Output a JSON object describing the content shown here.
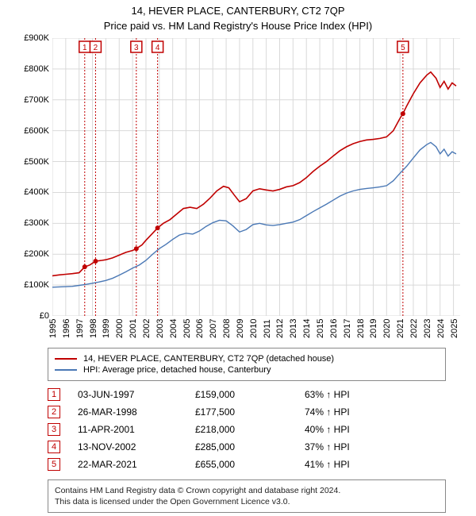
{
  "title1": "14, HEVER PLACE, CANTERBURY, CT2 7QP",
  "title2": "Price paid vs. HM Land Registry's House Price Index (HPI)",
  "chart": {
    "type": "line",
    "x_domain": [
      1995,
      2025.5
    ],
    "y_domain": [
      0,
      900000
    ],
    "y_ticks": [
      0,
      100000,
      200000,
      300000,
      400000,
      500000,
      600000,
      700000,
      800000,
      900000
    ],
    "y_tick_labels": [
      "£0",
      "£100K",
      "£200K",
      "£300K",
      "£400K",
      "£500K",
      "£600K",
      "£700K",
      "£800K",
      "£900K"
    ],
    "x_ticks": [
      1995,
      1996,
      1997,
      1998,
      1999,
      2000,
      2001,
      2002,
      2003,
      2004,
      2005,
      2006,
      2007,
      2008,
      2009,
      2010,
      2011,
      2012,
      2013,
      2014,
      2015,
      2016,
      2017,
      2018,
      2019,
      2020,
      2021,
      2022,
      2023,
      2024,
      2025
    ],
    "grid_color": "#d9d9d9",
    "background_color": "#ffffff",
    "markers": [
      {
        "n": "1",
        "x": 1997.42,
        "y": 159000
      },
      {
        "n": "2",
        "x": 1998.23,
        "y": 177500
      },
      {
        "n": "3",
        "x": 2001.28,
        "y": 218000
      },
      {
        "n": "4",
        "x": 2002.87,
        "y": 285000
      },
      {
        "n": "5",
        "x": 2021.22,
        "y": 655000
      }
    ],
    "marker_color": "#c00000",
    "series": [
      {
        "name": "14, HEVER PLACE, CANTERBURY, CT2 7QP (detached house)",
        "color": "#c00000",
        "width": 1.6,
        "points": [
          [
            1995.0,
            130000
          ],
          [
            1995.5,
            133000
          ],
          [
            1996.0,
            135000
          ],
          [
            1996.5,
            137000
          ],
          [
            1997.0,
            140000
          ],
          [
            1997.42,
            159000
          ],
          [
            1997.8,
            165000
          ],
          [
            1998.23,
            177500
          ],
          [
            1998.7,
            180000
          ],
          [
            1999.0,
            182000
          ],
          [
            1999.5,
            188000
          ],
          [
            2000.0,
            197000
          ],
          [
            2000.5,
            206000
          ],
          [
            2001.0,
            212000
          ],
          [
            2001.28,
            218000
          ],
          [
            2001.7,
            230000
          ],
          [
            2002.0,
            245000
          ],
          [
            2002.5,
            268000
          ],
          [
            2002.87,
            285000
          ],
          [
            2003.3,
            300000
          ],
          [
            2003.8,
            312000
          ],
          [
            2004.3,
            330000
          ],
          [
            2004.8,
            348000
          ],
          [
            2005.3,
            352000
          ],
          [
            2005.8,
            348000
          ],
          [
            2006.3,
            362000
          ],
          [
            2006.8,
            382000
          ],
          [
            2007.3,
            405000
          ],
          [
            2007.8,
            420000
          ],
          [
            2008.2,
            415000
          ],
          [
            2008.6,
            392000
          ],
          [
            2009.0,
            370000
          ],
          [
            2009.5,
            380000
          ],
          [
            2010.0,
            405000
          ],
          [
            2010.5,
            412000
          ],
          [
            2011.0,
            408000
          ],
          [
            2011.5,
            405000
          ],
          [
            2012.0,
            410000
          ],
          [
            2012.5,
            418000
          ],
          [
            2013.0,
            422000
          ],
          [
            2013.5,
            432000
          ],
          [
            2014.0,
            448000
          ],
          [
            2014.5,
            468000
          ],
          [
            2015.0,
            485000
          ],
          [
            2015.5,
            500000
          ],
          [
            2016.0,
            518000
          ],
          [
            2016.5,
            535000
          ],
          [
            2017.0,
            548000
          ],
          [
            2017.5,
            558000
          ],
          [
            2018.0,
            565000
          ],
          [
            2018.5,
            570000
          ],
          [
            2019.0,
            572000
          ],
          [
            2019.5,
            575000
          ],
          [
            2020.0,
            580000
          ],
          [
            2020.5,
            600000
          ],
          [
            2021.0,
            640000
          ],
          [
            2021.22,
            655000
          ],
          [
            2021.5,
            680000
          ],
          [
            2022.0,
            720000
          ],
          [
            2022.5,
            755000
          ],
          [
            2023.0,
            780000
          ],
          [
            2023.3,
            790000
          ],
          [
            2023.7,
            770000
          ],
          [
            2024.0,
            740000
          ],
          [
            2024.3,
            760000
          ],
          [
            2024.6,
            735000
          ],
          [
            2024.9,
            755000
          ],
          [
            2025.2,
            745000
          ]
        ]
      },
      {
        "name": "HPI: Average price, detached house, Canterbury",
        "color": "#4a78b5",
        "width": 1.4,
        "points": [
          [
            1995.0,
            93000
          ],
          [
            1995.5,
            94000
          ],
          [
            1996.0,
            95000
          ],
          [
            1996.5,
            96000
          ],
          [
            1997.0,
            99000
          ],
          [
            1997.5,
            102000
          ],
          [
            1998.0,
            106000
          ],
          [
            1998.5,
            110000
          ],
          [
            1999.0,
            115000
          ],
          [
            1999.5,
            122000
          ],
          [
            2000.0,
            132000
          ],
          [
            2000.5,
            143000
          ],
          [
            2001.0,
            155000
          ],
          [
            2001.5,
            165000
          ],
          [
            2002.0,
            180000
          ],
          [
            2002.5,
            200000
          ],
          [
            2003.0,
            218000
          ],
          [
            2003.5,
            232000
          ],
          [
            2004.0,
            248000
          ],
          [
            2004.5,
            262000
          ],
          [
            2005.0,
            268000
          ],
          [
            2005.5,
            265000
          ],
          [
            2006.0,
            275000
          ],
          [
            2006.5,
            290000
          ],
          [
            2007.0,
            302000
          ],
          [
            2007.5,
            310000
          ],
          [
            2008.0,
            308000
          ],
          [
            2008.5,
            292000
          ],
          [
            2009.0,
            272000
          ],
          [
            2009.5,
            280000
          ],
          [
            2010.0,
            296000
          ],
          [
            2010.5,
            300000
          ],
          [
            2011.0,
            295000
          ],
          [
            2011.5,
            293000
          ],
          [
            2012.0,
            296000
          ],
          [
            2012.5,
            300000
          ],
          [
            2013.0,
            304000
          ],
          [
            2013.5,
            312000
          ],
          [
            2014.0,
            325000
          ],
          [
            2014.5,
            338000
          ],
          [
            2015.0,
            350000
          ],
          [
            2015.5,
            362000
          ],
          [
            2016.0,
            375000
          ],
          [
            2016.5,
            388000
          ],
          [
            2017.0,
            398000
          ],
          [
            2017.5,
            405000
          ],
          [
            2018.0,
            410000
          ],
          [
            2018.5,
            413000
          ],
          [
            2019.0,
            415000
          ],
          [
            2019.5,
            418000
          ],
          [
            2020.0,
            422000
          ],
          [
            2020.5,
            438000
          ],
          [
            2021.0,
            462000
          ],
          [
            2021.5,
            485000
          ],
          [
            2022.0,
            512000
          ],
          [
            2022.5,
            538000
          ],
          [
            2023.0,
            555000
          ],
          [
            2023.3,
            562000
          ],
          [
            2023.7,
            548000
          ],
          [
            2024.0,
            525000
          ],
          [
            2024.3,
            540000
          ],
          [
            2024.6,
            518000
          ],
          [
            2024.9,
            532000
          ],
          [
            2025.2,
            525000
          ]
        ]
      }
    ]
  },
  "legend": {
    "box_border": "#888888"
  },
  "table_rows": [
    {
      "n": "1",
      "date": "03-JUN-1997",
      "price": "£159,000",
      "pct": "63% ↑ HPI"
    },
    {
      "n": "2",
      "date": "26-MAR-1998",
      "price": "£177,500",
      "pct": "74% ↑ HPI"
    },
    {
      "n": "3",
      "date": "11-APR-2001",
      "price": "£218,000",
      "pct": "40% ↑ HPI"
    },
    {
      "n": "4",
      "date": "13-NOV-2002",
      "price": "£285,000",
      "pct": "37% ↑ HPI"
    },
    {
      "n": "5",
      "date": "22-MAR-2021",
      "price": "£655,000",
      "pct": "41% ↑ HPI"
    }
  ],
  "table_badge_color": "#c00000",
  "footer_line1": "Contains HM Land Registry data © Crown copyright and database right 2024.",
  "footer_line2": "This data is licensed under the Open Government Licence v3.0."
}
